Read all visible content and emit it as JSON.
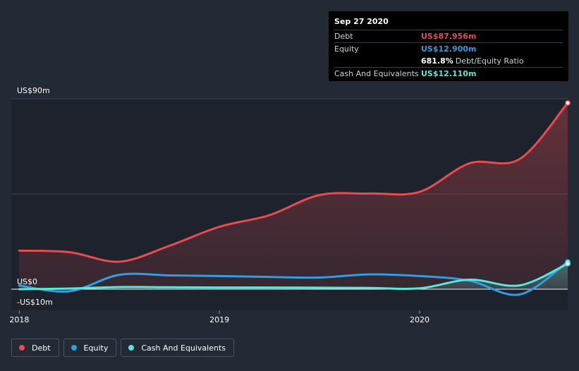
{
  "tooltip": {
    "date": "Sep 27 2020",
    "rows": [
      {
        "label": "Debt",
        "value": "US$87.956m",
        "color": "#e84c4f"
      },
      {
        "label": "Equity",
        "value": "US$12.900m",
        "color": "#2c9fe5"
      },
      {
        "label": "",
        "value": "681.8%",
        "sub": "Debt/Equity Ratio",
        "color": "#ffffff"
      },
      {
        "label": "Cash And Equivalents",
        "value": "US$12.110m",
        "color": "#5ce6d8"
      }
    ]
  },
  "legend": [
    {
      "label": "Debt",
      "color": "#e84c4f"
    },
    {
      "label": "Equity",
      "color": "#2c9fe5"
    },
    {
      "label": "Cash And Equivalents",
      "color": "#5ce6d8"
    }
  ],
  "chart_data": {
    "type": "area",
    "title": "",
    "xlabel": "",
    "ylabel": "",
    "ylim": [
      -10,
      90
    ],
    "xlim": [
      2017.96,
      2020.74
    ],
    "y_ticks": [
      {
        "value": 90,
        "label": "US$90m"
      },
      {
        "value": 0,
        "label": "US$0"
      },
      {
        "value": -10,
        "label": "-US$10m"
      }
    ],
    "x_ticks": [
      {
        "value": 2018.0,
        "label": "2018"
      },
      {
        "value": 2019.0,
        "label": "2019"
      },
      {
        "value": 2020.0,
        "label": "2020"
      }
    ],
    "grid": true,
    "legend_position": "bottom-left",
    "series": [
      {
        "name": "Debt",
        "color": "#e84c4f",
        "fill": true,
        "points": [
          [
            2018.0,
            18.2
          ],
          [
            2018.25,
            17.5
          ],
          [
            2018.5,
            13.0
          ],
          [
            2018.75,
            20.5
          ],
          [
            2019.0,
            29.5
          ],
          [
            2019.25,
            35.0
          ],
          [
            2019.5,
            44.5
          ],
          [
            2019.75,
            45.2
          ],
          [
            2020.0,
            46.0
          ],
          [
            2020.25,
            59.5
          ],
          [
            2020.5,
            61.5
          ],
          [
            2020.74,
            88.0
          ]
        ]
      },
      {
        "name": "Equity",
        "color": "#2c9fe5",
        "fill": false,
        "points": [
          [
            2018.0,
            1.7
          ],
          [
            2018.25,
            -1.0
          ],
          [
            2018.5,
            6.8
          ],
          [
            2018.75,
            6.5
          ],
          [
            2019.0,
            6.2
          ],
          [
            2019.25,
            5.8
          ],
          [
            2019.5,
            5.5
          ],
          [
            2019.75,
            7.0
          ],
          [
            2020.0,
            6.2
          ],
          [
            2020.25,
            4.0
          ],
          [
            2020.5,
            -2.5
          ],
          [
            2020.74,
            12.9
          ]
        ]
      },
      {
        "name": "Cash And Equivalents",
        "color": "#5ce6d8",
        "fill": true,
        "points": [
          [
            2018.0,
            0.0
          ],
          [
            2018.25,
            0.3
          ],
          [
            2018.5,
            1.0
          ],
          [
            2018.75,
            0.9
          ],
          [
            2019.0,
            0.8
          ],
          [
            2019.25,
            0.8
          ],
          [
            2019.5,
            0.7
          ],
          [
            2019.75,
            0.6
          ],
          [
            2020.0,
            0.4
          ],
          [
            2020.25,
            4.5
          ],
          [
            2020.5,
            1.8
          ],
          [
            2020.74,
            12.1
          ]
        ]
      }
    ]
  }
}
